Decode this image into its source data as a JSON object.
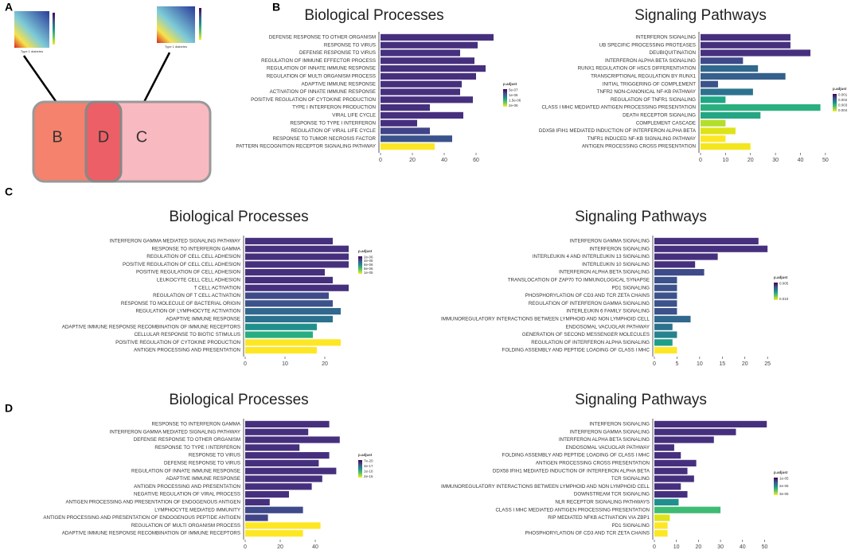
{
  "panels": [
    "A",
    "B",
    "C",
    "D"
  ],
  "diagram": {
    "sets": [
      "B",
      "D",
      "C"
    ],
    "heatmap_labels": [
      "Type 1 diabetes",
      "Type 1 diabetes"
    ]
  },
  "chart_data": [
    {
      "type": "barh",
      "title": "Biological Processes",
      "legend_title": "p.adjust",
      "legend_ticks": [
        "5e-07",
        "1e-06",
        "1.5e-06",
        "2e-06"
      ],
      "categories": [
        "DEFENSE RESPONSE TO OTHER ORGANISM",
        "RESPONSE TO VIRUS",
        "DEFENSE RESPONSE TO VIRUS",
        "REGULATION OF IMMUNE EFFECTOR PROCESS",
        "REGULATION OF INNATE IMMUNE RESPONSE",
        "REGULATION OF MULTI ORGANISM PROCESS",
        "ADAPTIVE IMMUNE RESPONSE",
        "ACTIVATION OF INNATE IMMUNE RESPONSE",
        "POSITIVE REGULATION OF CYTOKINE PRODUCTION",
        "TYPE I INTERFERON PRODUCTION",
        "VIRAL LIFE CYCLE",
        "RESPONSE TO TYPE I INTERFERON",
        "REGULATION OF VIRAL LIFE CYCLE",
        "RESPONSE TO TUMOR NECROSIS FACTOR",
        "PATTERN RECOGNITION RECEPTOR SIGNALING PATHWAY"
      ],
      "values": [
        71,
        61,
        50,
        59,
        66,
        60,
        51,
        50,
        58,
        31,
        52,
        23,
        31,
        45,
        34
      ],
      "colors": [
        "#46307e",
        "#46307e",
        "#46307e",
        "#46307e",
        "#46307e",
        "#46307e",
        "#46307e",
        "#46307e",
        "#46307e",
        "#46307e",
        "#46307e",
        "#46307e",
        "#414487",
        "#3b528b",
        "#fde725"
      ],
      "xlim": [
        0,
        73
      ],
      "xticks": [
        0,
        20,
        40,
        60
      ]
    },
    {
      "type": "barh",
      "title": "Signaling Pathways",
      "legend_title": "p.adjust",
      "legend_ticks": [
        "0.001",
        "0.002",
        "0.003",
        "0.004"
      ],
      "categories": [
        "INTERFERON SIGNALING",
        "UB SPECIFIC PROCESSING PROTEASES",
        "DEUBIQUITINATION",
        "INTERFERON ALPHA BETA SIGNALING",
        "RUNX1 REGULATION OF HSCS DIFFERENTIATION",
        "TRANSCRIPTIONAL REGULATION BY RUNX1",
        "INITIAL TRIGGERING OF COMPLEMENT",
        "TNFR2 NON-CANONICAL NF-KB PATHWAY",
        "REGULATION OF TNFR1 SIGNALING",
        "CLASS I MHC MEDIATED ANTIGEN PROCESSING PRESENTATION",
        "DEATH RECEPTOR SIGNALING",
        "COMPLEMENT CASCADE",
        "DDX58 IFIH1 MEDIATED INDUCTION OF INTERFERON ALPHA BETA",
        "TNFR1 INDUCED NF-KB SIGNALING PATHWAY",
        "ANTIGEN PROCESSING CROSS PRESENTATION"
      ],
      "values": [
        36,
        36,
        44,
        17,
        23,
        34,
        7,
        21,
        10,
        48,
        24,
        10,
        14,
        10,
        20
      ],
      "colors": [
        "#46307e",
        "#46307e",
        "#46307e",
        "#3e4a89",
        "#31688e",
        "#35608d",
        "#3b528b",
        "#2c728e",
        "#21a685",
        "#2ab07f",
        "#25a584",
        "#b4de2c",
        "#dde318",
        "#fde725",
        "#f4e61e"
      ],
      "xlim": [
        0,
        51
      ],
      "xticks": [
        0,
        10,
        20,
        30,
        40,
        50
      ]
    },
    {
      "type": "barh",
      "title": "Biological Processes",
      "legend_title": "p.adjust",
      "legend_ticks": [
        "2e-06",
        "4e-06",
        "6e-06",
        "8e-06",
        "1e-05"
      ],
      "categories": [
        "INTERFERON GAMMA MEDIATED SIGNALING PATHWAY",
        "RESPONSE TO INTERFERON GAMMA",
        "REGULATION OF CELL CELL ADHESION",
        "POSITIVE REGULATION OF CELL CELL ADHESION",
        "POSITIVE REGULATION OF CELL ADHESION",
        "LEUKOCYTE CELL CELL ADHESION",
        "T CELL ACTIVATION",
        "REGULATION OF T CELL ACTIVATION",
        "RESPONSE TO MOLECULE OF BACTERIAL ORIGIN",
        "REGULATION OF LYMPHOCYTE ACTIVATION",
        "ADAPTIVE IMMUNE RESPONSE",
        "ADAPTIVE IMMUNE RESPONSE RECOMBINATION OF IMMUNE RECEPTORS",
        "CELLULAR RESPONSE TO BIOTIC STIMULUS",
        "POSITIVE REGULATION OF CYTOKINE PRODUCTION",
        "ANTIGEN PROCESSING AND PRESENTATION"
      ],
      "values": [
        22,
        26,
        26,
        26,
        20,
        22,
        26,
        21,
        22,
        24,
        22,
        18,
        17,
        24,
        18
      ],
      "colors": [
        "#46307e",
        "#46307e",
        "#46307e",
        "#46307e",
        "#46307e",
        "#46307e",
        "#46307e",
        "#3e4a89",
        "#3b528b",
        "#31688e",
        "#2c728e",
        "#21908d",
        "#27ad81",
        "#fde725",
        "#fde725"
      ],
      "xlim": [
        0,
        27
      ],
      "xticks": [
        0,
        10,
        20
      ]
    },
    {
      "type": "barh",
      "title": "Signaling Pathways",
      "legend_title": "p.adjust",
      "legend_ticks": [
        "0.005",
        "0.010"
      ],
      "categories": [
        "INTERFERON GAMMA SIGNALING",
        "INTERFERON SIGNALING",
        "INTERLEUKIN 4 AND INTERLEUKIN 13 SIGNALING",
        "INTERLEUKIN 10 SIGNALING",
        "INTERFERON ALPHA BETA SIGNALING",
        "TRANSLOCATION OF ZAP70 TO IMMUNOLOGICAL SYNAPSE",
        "PD1 SIGNALING",
        "PHOSPHORYLATION OF CD3 AND TCR ZETA CHAINS",
        "REGULATION OF INTERFERON GAMMA SIGNALING",
        "INTERLEUKIN 6 FAMILY SIGNALING",
        "IMMUNOREGULATORY INTERACTIONS BETWEEN LYMPHOID AND NON LYMPHOID CELL",
        "ENDOSOMAL VACUOLAR PATHWAY",
        "GENERATION OF SECOND MESSENGER MOLECULES",
        "REGULATION OF INTERFERON ALPHA SIGNALING",
        "FOLDING ASSEMBLY AND PEPTIDE LOADING OF CLASS I MHC"
      ],
      "values": [
        23,
        25,
        14,
        9,
        11,
        5,
        5,
        5,
        5,
        5,
        8,
        4,
        5,
        4,
        5
      ],
      "colors": [
        "#46307e",
        "#46307e",
        "#46307e",
        "#46307e",
        "#3e4a89",
        "#3b528b",
        "#3b528b",
        "#3b528b",
        "#3b528b",
        "#3b528b",
        "#31688e",
        "#2c728e",
        "#26828e",
        "#1f9e89",
        "#fde725"
      ],
      "xlim": [
        0,
        25.5
      ],
      "xticks": [
        0,
        5,
        10,
        15,
        20,
        25
      ]
    },
    {
      "type": "barh",
      "title": "Biological Processes",
      "legend_title": "p.adjust",
      "legend_ticks": [
        "7e-20",
        "4e-17",
        "1e-16",
        "2e-16"
      ],
      "categories": [
        "RESPONSE TO INTERFERON GAMMA",
        "INTERFERON GAMMA MEDIATED SIGNALING PATHWAY",
        "DEFENSE RESPONSE TO OTHER ORGANISM",
        "RESPONSE TO TYPE I INTERFERON",
        "RESPONSE TO VIRUS",
        "DEFENSE RESPONSE TO VIRUS",
        "REGULATION OF INNATE IMMUNE RESPONSE",
        "ADAPTIVE IMMUNE RESPONSE",
        "ANTIGEN PROCESSING AND PRESENTATION",
        "NEGATIVE REGULATION OF VIRAL PROCESS",
        "ANTIGEN PROCESSING AND PRESENTATION OF ENDOGENOUS ANTIGEN",
        "LYMPHOCYTE MEDIATED IMMUNITY",
        "ANTIGEN PROCESSING AND PRESENTATION OF ENDOGENOUS PEPTIDE ANTIGEN",
        "REGULATION OF MULTI ORGANISM PROCESS",
        "ADAPTIVE IMMUNE RESPONSE RECOMBINATION OF IMMUNE RECEPTORS"
      ],
      "values": [
        48,
        36,
        54,
        31,
        48,
        42,
        52,
        44,
        38,
        25,
        14,
        33,
        13,
        43,
        33
      ],
      "colors": [
        "#46307e",
        "#46307e",
        "#46307e",
        "#46307e",
        "#46307e",
        "#46307e",
        "#46307e",
        "#46307e",
        "#46307e",
        "#46307e",
        "#46307e",
        "#3e4a89",
        "#414487",
        "#fde725",
        "#fde725"
      ],
      "xlim": [
        0,
        55
      ],
      "xticks": [
        0,
        20,
        40
      ]
    },
    {
      "type": "barh",
      "title": "Signaling Pathways",
      "legend_title": "p.adjust",
      "legend_ticks": [
        "1e-05",
        "2e-05",
        "3e-05"
      ],
      "categories": [
        "INTERFERON SIGNALING",
        "INTERFERON GAMMA SIGNALING",
        "INTERFERON ALPHA BETA SIGNALING",
        "ENDOSOMAL VACUOLAR PATHWAY",
        "FOLDING ASSEMBLY AND PEPTIDE LOADING OF CLASS I MHC",
        "ANTIGEN PROCESSING CROSS PRESENTATION",
        "DDX58 IFIH1 MEDIATED INDUCTION OF INTERFERON ALPHA BETA",
        "TCR SIGNALING",
        "IMMUNOREGULATORY INTERACTIONS BETWEEN LYMPHOID AND NON LYMPHOID CELL",
        "DOWNSTREAM TCR SIGNALING",
        "NLR RECEPTOR SIGNALING PATHWAYS",
        "CLASS I MHC MEDIATED ANTIGEN PROCESSING PRESENTATION",
        "RIP MEDIATED NFKB ACTIVATION VIA ZBP1",
        "PD1 SIGNALING",
        "PHOSPHORYLATION OF CD3 AND TCR ZETA CHAINS"
      ],
      "values": [
        51,
        37,
        27,
        9,
        12,
        19,
        15,
        18,
        12,
        15,
        11,
        30,
        7,
        6,
        6
      ],
      "colors": [
        "#46307e",
        "#46307e",
        "#46307e",
        "#46307e",
        "#46307e",
        "#46307e",
        "#46307e",
        "#46307e",
        "#46307e",
        "#46307e",
        "#21908d",
        "#3fbc73",
        "#dde318",
        "#fde725",
        "#fde725"
      ],
      "xlim": [
        0,
        52
      ],
      "xticks": [
        0,
        10,
        20,
        30,
        40,
        50
      ]
    }
  ]
}
